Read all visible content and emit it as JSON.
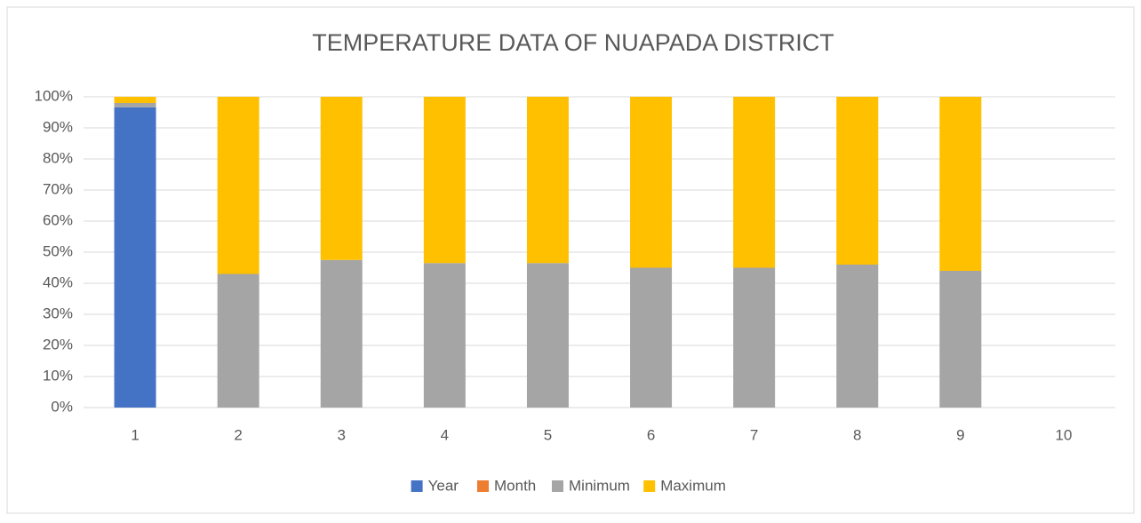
{
  "chart_data": {
    "type": "stacked_bar_100",
    "title": "TEMPERATURE DATA OF NUAPADA DISTRICT",
    "categories": [
      "1",
      "2",
      "3",
      "4",
      "5",
      "6",
      "7",
      "8",
      "9",
      "10"
    ],
    "series": [
      {
        "name": "Year",
        "color": "#4472c4",
        "values": [
          96.6,
          0,
          0,
          0,
          0,
          0,
          0,
          0,
          0,
          null
        ]
      },
      {
        "name": "Month",
        "color": "#ed7d31",
        "values": [
          0,
          0,
          0,
          0,
          0,
          0,
          0,
          0,
          0,
          null
        ]
      },
      {
        "name": "Minimum",
        "color": "#a5a5a5",
        "values": [
          1.4,
          43,
          47.5,
          46.5,
          46.5,
          45,
          45,
          46,
          44,
          null
        ]
      },
      {
        "name": "Maximum",
        "color": "#ffc000",
        "values": [
          2,
          57,
          52.5,
          53.5,
          53.5,
          55,
          55,
          54,
          56,
          null
        ]
      }
    ],
    "ylim": [
      0,
      100
    ],
    "yticks": [
      {
        "value": 0,
        "label": "0%"
      },
      {
        "value": 10,
        "label": "10%"
      },
      {
        "value": 20,
        "label": "20%"
      },
      {
        "value": 30,
        "label": "30%"
      },
      {
        "value": 40,
        "label": "40%"
      },
      {
        "value": 50,
        "label": "50%"
      },
      {
        "value": 60,
        "label": "60%"
      },
      {
        "value": 70,
        "label": "70%"
      },
      {
        "value": 80,
        "label": "80%"
      },
      {
        "value": 90,
        "label": "90%"
      },
      {
        "value": 100,
        "label": "100%"
      }
    ],
    "grid": true,
    "legend": "bottom"
  }
}
